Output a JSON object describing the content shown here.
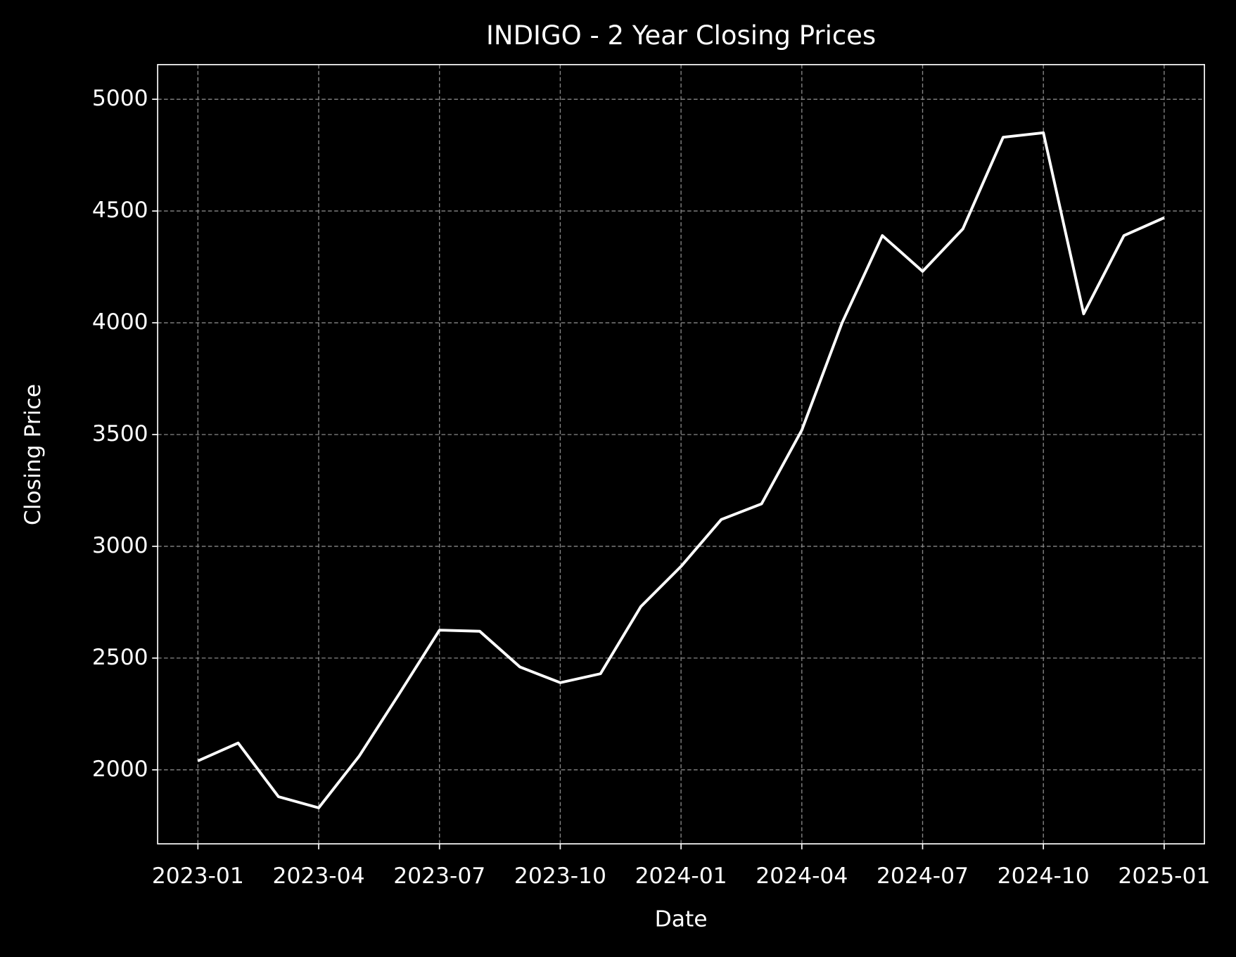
{
  "chart_data": {
    "type": "line",
    "title": "INDIGO - 2 Year Closing Prices",
    "x_label": "Date",
    "y_label": "Closing Price",
    "x": [
      "2023-01",
      "2023-02",
      "2023-03",
      "2023-04",
      "2023-05",
      "2023-06",
      "2023-07",
      "2023-08",
      "2023-09",
      "2023-10",
      "2023-11",
      "2023-12",
      "2024-01",
      "2024-02",
      "2024-03",
      "2024-04",
      "2024-05",
      "2024-06",
      "2024-07",
      "2024-08",
      "2024-09",
      "2024-10",
      "2024-11",
      "2024-12",
      "2025-01"
    ],
    "series": [
      {
        "name": "INDIGO",
        "color": "#ffffff",
        "values": [
          2040,
          2120,
          1880,
          1830,
          2060,
          2340,
          2625,
          2620,
          2460,
          2390,
          2430,
          2730,
          2910,
          3120,
          3190,
          3520,
          4000,
          4390,
          4230,
          4420,
          4830,
          4850,
          4040,
          4390,
          4470
        ]
      }
    ],
    "xlim": [
      "2022-12",
      "2025-02"
    ],
    "ylim": [
      1669,
      5155
    ],
    "xticks": [
      "2023-01",
      "2023-04",
      "2023-07",
      "2023-10",
      "2024-01",
      "2024-04",
      "2024-07",
      "2024-10",
      "2025-01"
    ],
    "yticks": [
      2000,
      2500,
      3000,
      3500,
      4000,
      4500,
      5000
    ],
    "grid": true
  }
}
